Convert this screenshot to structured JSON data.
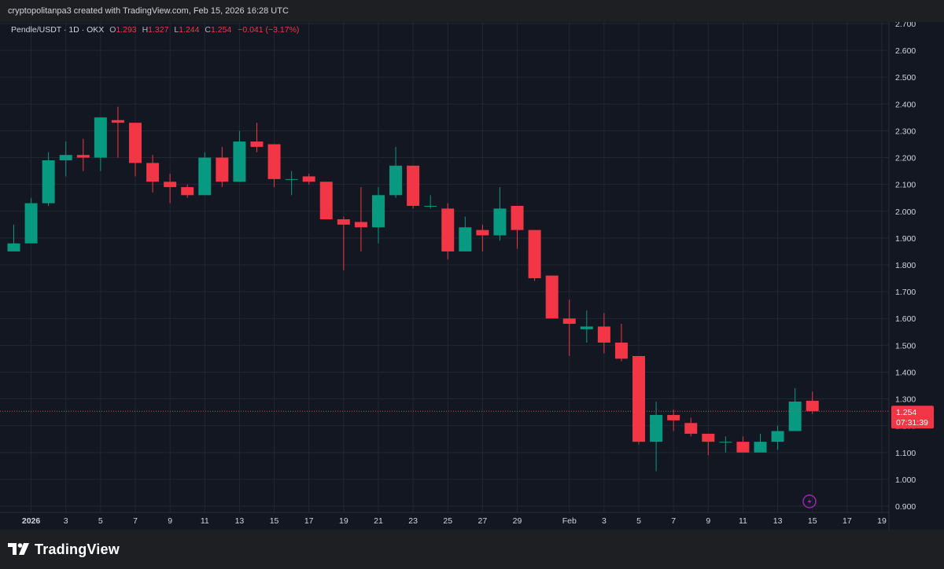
{
  "header": {
    "credit": "cryptopolitanpa3 created with TradingView.com, Feb 15, 2026 16:28 UTC"
  },
  "legend": {
    "symbol": "Pendle/USDT · 1D · OKX",
    "o_label": "O",
    "o_value": "1.293",
    "h_label": "H",
    "h_value": "1.327",
    "l_label": "L",
    "l_value": "1.244",
    "c_label": "C",
    "c_value": "1.254",
    "change": "−0.041 (−3.17%)"
  },
  "price_tag": {
    "price": "1.254",
    "countdown": "07:31:39"
  },
  "brand": {
    "name": "TradingView"
  },
  "colors": {
    "up": "#089981",
    "down": "#f23645",
    "background": "#131722",
    "grid": "#232733"
  },
  "icons": {
    "flash": "flash-icon",
    "logo": "tradingview-logo-icon"
  },
  "chart_data": {
    "type": "candlestick",
    "ylim": [
      0.88,
      2.72
    ],
    "y_ticks": [
      "2.700",
      "2.600",
      "2.500",
      "2.400",
      "2.300",
      "2.200",
      "2.100",
      "2.000",
      "1.900",
      "1.800",
      "1.700",
      "1.600",
      "1.500",
      "1.400",
      "1.300",
      "1.200",
      "1.100",
      "1.000",
      "0.900"
    ],
    "x_ticks": [
      {
        "day": 1,
        "label": "2026"
      },
      {
        "day": 3,
        "label": "3"
      },
      {
        "day": 5,
        "label": "5"
      },
      {
        "day": 7,
        "label": "7"
      },
      {
        "day": 9,
        "label": "9"
      },
      {
        "day": 11,
        "label": "11"
      },
      {
        "day": 13,
        "label": "13"
      },
      {
        "day": 15,
        "label": "15"
      },
      {
        "day": 17,
        "label": "17"
      },
      {
        "day": 19,
        "label": "19"
      },
      {
        "day": 21,
        "label": "21"
      },
      {
        "day": 23,
        "label": "23"
      },
      {
        "day": 25,
        "label": "25"
      },
      {
        "day": 27,
        "label": "27"
      },
      {
        "day": 29,
        "label": "29"
      },
      {
        "day": 32,
        "label": "Feb"
      },
      {
        "day": 34,
        "label": "3"
      },
      {
        "day": 36,
        "label": "5"
      },
      {
        "day": 38,
        "label": "7"
      },
      {
        "day": 40,
        "label": "9"
      },
      {
        "day": 42,
        "label": "11"
      },
      {
        "day": 44,
        "label": "13"
      },
      {
        "day": 46,
        "label": "15"
      },
      {
        "day": 48,
        "label": "17"
      },
      {
        "day": 50,
        "label": "19"
      }
    ],
    "last_price": 1.254,
    "candles": [
      {
        "d": "Dec 31",
        "o": 1.85,
        "h": 1.95,
        "l": 1.85,
        "c": 1.88
      },
      {
        "d": "Jan 1",
        "o": 1.88,
        "h": 2.05,
        "l": 1.88,
        "c": 2.03
      },
      {
        "d": "Jan 2",
        "o": 2.03,
        "h": 2.22,
        "l": 2.02,
        "c": 2.19
      },
      {
        "d": "Jan 3",
        "o": 2.19,
        "h": 2.26,
        "l": 2.13,
        "c": 2.21
      },
      {
        "d": "Jan 4",
        "o": 2.21,
        "h": 2.27,
        "l": 2.15,
        "c": 2.2
      },
      {
        "d": "Jan 5",
        "o": 2.2,
        "h": 2.35,
        "l": 2.15,
        "c": 2.35
      },
      {
        "d": "Jan 6",
        "o": 2.34,
        "h": 2.39,
        "l": 2.2,
        "c": 2.33
      },
      {
        "d": "Jan 7",
        "o": 2.33,
        "h": 2.33,
        "l": 2.13,
        "c": 2.18
      },
      {
        "d": "Jan 8",
        "o": 2.18,
        "h": 2.21,
        "l": 2.07,
        "c": 2.11
      },
      {
        "d": "Jan 9",
        "o": 2.11,
        "h": 2.14,
        "l": 2.03,
        "c": 2.09
      },
      {
        "d": "Jan 10",
        "o": 2.09,
        "h": 2.1,
        "l": 2.05,
        "c": 2.06
      },
      {
        "d": "Jan 11",
        "o": 2.06,
        "h": 2.22,
        "l": 2.06,
        "c": 2.2
      },
      {
        "d": "Jan 12",
        "o": 2.2,
        "h": 2.24,
        "l": 2.09,
        "c": 2.11
      },
      {
        "d": "Jan 13",
        "o": 2.11,
        "h": 2.3,
        "l": 2.11,
        "c": 2.26
      },
      {
        "d": "Jan 14",
        "o": 2.26,
        "h": 2.33,
        "l": 2.22,
        "c": 2.24
      },
      {
        "d": "Jan 15",
        "o": 2.25,
        "h": 2.25,
        "l": 2.09,
        "c": 2.12
      },
      {
        "d": "Jan 16",
        "o": 2.12,
        "h": 2.15,
        "l": 2.06,
        "c": 2.12
      },
      {
        "d": "Jan 17",
        "o": 2.13,
        "h": 2.14,
        "l": 2.1,
        "c": 2.11
      },
      {
        "d": "Jan 18",
        "o": 2.11,
        "h": 2.11,
        "l": 1.97,
        "c": 1.97
      },
      {
        "d": "Jan 19",
        "o": 1.97,
        "h": 1.98,
        "l": 1.78,
        "c": 1.95
      },
      {
        "d": "Jan 20",
        "o": 1.96,
        "h": 2.09,
        "l": 1.85,
        "c": 1.94
      },
      {
        "d": "Jan 21",
        "o": 1.94,
        "h": 2.09,
        "l": 1.88,
        "c": 2.06
      },
      {
        "d": "Jan 22",
        "o": 2.06,
        "h": 2.24,
        "l": 2.05,
        "c": 2.17
      },
      {
        "d": "Jan 23",
        "o": 2.17,
        "h": 2.17,
        "l": 2.01,
        "c": 2.02
      },
      {
        "d": "Jan 24",
        "o": 2.02,
        "h": 2.06,
        "l": 2.01,
        "c": 2.02
      },
      {
        "d": "Jan 25",
        "o": 2.01,
        "h": 2.03,
        "l": 1.82,
        "c": 1.85
      },
      {
        "d": "Jan 26",
        "o": 1.85,
        "h": 1.98,
        "l": 1.85,
        "c": 1.94
      },
      {
        "d": "Jan 27",
        "o": 1.93,
        "h": 1.95,
        "l": 1.85,
        "c": 1.91
      },
      {
        "d": "Jan 28",
        "o": 1.91,
        "h": 2.09,
        "l": 1.89,
        "c": 2.01
      },
      {
        "d": "Jan 29",
        "o": 2.02,
        "h": 2.02,
        "l": 1.86,
        "c": 1.93
      },
      {
        "d": "Jan 30",
        "o": 1.93,
        "h": 1.93,
        "l": 1.74,
        "c": 1.75
      },
      {
        "d": "Jan 31",
        "o": 1.76,
        "h": 1.76,
        "l": 1.6,
        "c": 1.6
      },
      {
        "d": "Feb 1",
        "o": 1.6,
        "h": 1.67,
        "l": 1.46,
        "c": 1.58
      },
      {
        "d": "Feb 2",
        "o": 1.56,
        "h": 1.63,
        "l": 1.51,
        "c": 1.57
      },
      {
        "d": "Feb 3",
        "o": 1.57,
        "h": 1.62,
        "l": 1.47,
        "c": 1.51
      },
      {
        "d": "Feb 4",
        "o": 1.51,
        "h": 1.58,
        "l": 1.44,
        "c": 1.45
      },
      {
        "d": "Feb 5",
        "o": 1.46,
        "h": 1.46,
        "l": 1.13,
        "c": 1.14
      },
      {
        "d": "Feb 6",
        "o": 1.14,
        "h": 1.29,
        "l": 1.03,
        "c": 1.24
      },
      {
        "d": "Feb 7",
        "o": 1.24,
        "h": 1.26,
        "l": 1.18,
        "c": 1.22
      },
      {
        "d": "Feb 8",
        "o": 1.21,
        "h": 1.23,
        "l": 1.16,
        "c": 1.17
      },
      {
        "d": "Feb 9",
        "o": 1.17,
        "h": 1.17,
        "l": 1.09,
        "c": 1.14
      },
      {
        "d": "Feb 10",
        "o": 1.14,
        "h": 1.16,
        "l": 1.1,
        "c": 1.14
      },
      {
        "d": "Feb 11",
        "o": 1.14,
        "h": 1.16,
        "l": 1.1,
        "c": 1.1
      },
      {
        "d": "Feb 12",
        "o": 1.1,
        "h": 1.17,
        "l": 1.1,
        "c": 1.14
      },
      {
        "d": "Feb 13",
        "o": 1.14,
        "h": 1.2,
        "l": 1.11,
        "c": 1.18
      },
      {
        "d": "Feb 14",
        "o": 1.18,
        "h": 1.34,
        "l": 1.18,
        "c": 1.29
      },
      {
        "d": "Feb 15",
        "o": 1.293,
        "h": 1.327,
        "l": 1.244,
        "c": 1.254
      }
    ]
  }
}
